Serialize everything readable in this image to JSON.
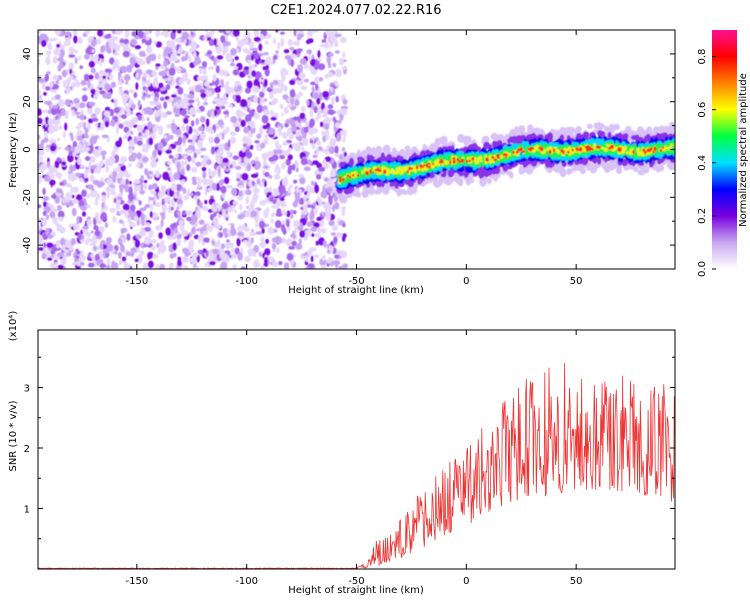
{
  "title": "C2E1.2024.077.02.22.R16",
  "chart_data": [
    {
      "type": "heatmap",
      "xlabel": "Height of straight line (km)",
      "ylabel": "Frequency (Hz)",
      "xlim": [
        -195,
        95
      ],
      "ylim": [
        -50,
        50
      ],
      "xticks": [
        -150,
        -100,
        -50,
        0,
        50
      ],
      "yticks": [
        -40,
        -20,
        0,
        20,
        40
      ],
      "colorbar": {
        "label": "Normalized spectral amplitude",
        "range": [
          0.0,
          0.9
        ],
        "ticks": [
          "0.0",
          "0.2",
          "0.4",
          "0.6",
          "0.8"
        ],
        "colormap": [
          "#ffffff",
          "#c8a8f0",
          "#7a00e0",
          "#0000ff",
          "#00e0ff",
          "#00ff40",
          "#ffff00",
          "#ff8000",
          "#ff0000",
          "#ff1090"
        ]
      },
      "signal_band": {
        "x_start": -60,
        "x_end": 95,
        "freq_start": -12,
        "freq_end": 0,
        "half_width_hz": 4
      },
      "noise_region": {
        "x_start": -195,
        "x_end": -55
      }
    },
    {
      "type": "line",
      "xlabel": "Height of straight line (km)",
      "ylabel": "SNR (10 * v/v)",
      "multiplier": "(x10⁴)",
      "xlim": [
        -195,
        95
      ],
      "ylim": [
        0,
        3.95
      ],
      "xticks": [
        -150,
        -100,
        -50,
        0,
        50
      ],
      "yticks": [
        1,
        2,
        3
      ],
      "color": "#ee3333",
      "envelope": [
        {
          "x": -195,
          "lo": 0.0,
          "hi": 0.02
        },
        {
          "x": -50,
          "lo": 0.0,
          "hi": 0.03
        },
        {
          "x": -45,
          "lo": 0.02,
          "hi": 0.15
        },
        {
          "x": -40,
          "lo": 0.05,
          "hi": 0.6
        },
        {
          "x": -30,
          "lo": 0.15,
          "hi": 0.9
        },
        {
          "x": -20,
          "lo": 0.3,
          "hi": 1.3
        },
        {
          "x": -10,
          "lo": 0.5,
          "hi": 1.7
        },
        {
          "x": 0,
          "lo": 0.7,
          "hi": 2.0
        },
        {
          "x": 10,
          "lo": 0.9,
          "hi": 2.5
        },
        {
          "x": 20,
          "lo": 1.1,
          "hi": 2.9
        },
        {
          "x": 30,
          "lo": 1.2,
          "hi": 3.3
        },
        {
          "x": 40,
          "lo": 1.2,
          "hi": 3.5
        },
        {
          "x": 50,
          "lo": 1.3,
          "hi": 3.4
        },
        {
          "x": 60,
          "lo": 1.3,
          "hi": 3.3
        },
        {
          "x": 70,
          "lo": 1.2,
          "hi": 3.3
        },
        {
          "x": 80,
          "lo": 1.2,
          "hi": 3.2
        },
        {
          "x": 95,
          "lo": 1.1,
          "hi": 3.0
        }
      ]
    }
  ]
}
